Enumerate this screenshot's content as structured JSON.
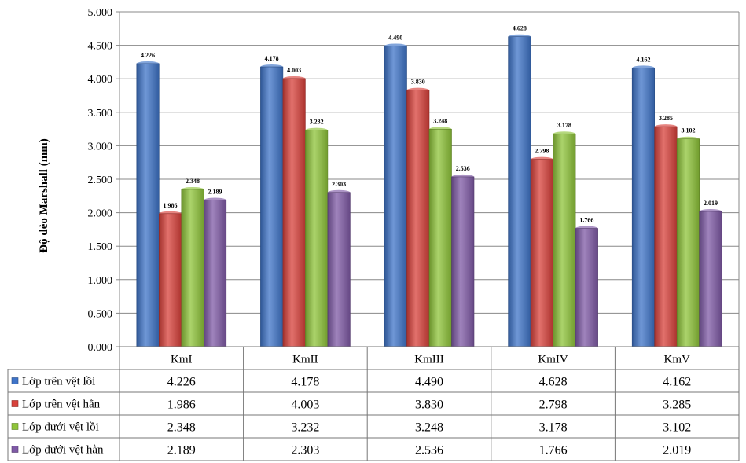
{
  "chart_data": {
    "type": "bar",
    "title": "",
    "ylabel": "Độ dẻo Marshall  (mm)",
    "xlabel": "",
    "ylim": [
      0,
      5
    ],
    "ytick_step": 0.5,
    "ytick_labels": [
      "0.000",
      "0.500",
      "1.000",
      "1.500",
      "2.000",
      "2.500",
      "3.000",
      "3.500",
      "4.000",
      "4.500",
      "5.000"
    ],
    "grid": true,
    "legend_placement": "data-table-left",
    "categories": [
      "KmI",
      "KmII",
      "KmIII",
      "KmIV",
      "KmV"
    ],
    "series": [
      {
        "name": "Lớp trên vệt lồi",
        "color": "#3f74c8",
        "values": [
          4.226,
          4.178,
          4.49,
          4.628,
          4.162
        ],
        "labels": [
          "4.226",
          "4.178",
          "4.490",
          "4.628",
          "4.162"
        ]
      },
      {
        "name": "Lớp trên vệt hằn",
        "color": "#d8413b",
        "values": [
          1.986,
          4.003,
          3.83,
          2.798,
          3.285
        ],
        "labels": [
          "1.986",
          "4.003",
          "3.830",
          "2.798",
          "3.285"
        ]
      },
      {
        "name": "Lớp dưới vệt lồi",
        "color": "#8fc43a",
        "values": [
          2.348,
          3.232,
          3.248,
          3.178,
          3.102
        ],
        "labels": [
          "2.348",
          "3.232",
          "3.248",
          "3.178",
          "3.102"
        ]
      },
      {
        "name": "Lớp dưới vệt hằn",
        "color": "#7f5aa6",
        "values": [
          2.189,
          2.303,
          2.536,
          1.766,
          2.019
        ],
        "labels": [
          "2.189",
          "2.303",
          "2.536",
          "1.766",
          "2.019"
        ]
      }
    ]
  }
}
